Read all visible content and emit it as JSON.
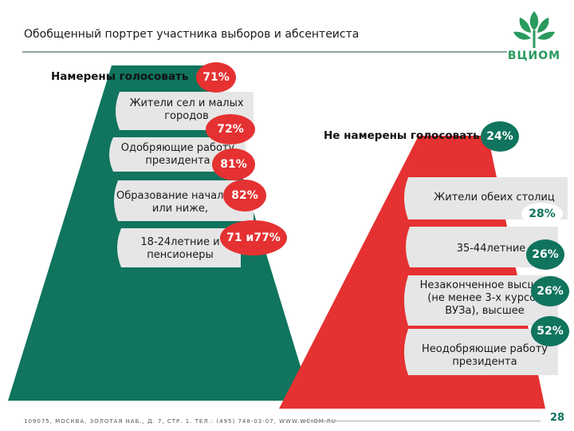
{
  "title": "Обобщенный портрет участника выборов и абсентеиста",
  "brand": "ВЦИОМ",
  "colors": {
    "green": "#10745e",
    "red": "#e53131",
    "block": "#e6e6e6"
  },
  "left": {
    "header": "Намерены голосовать",
    "header_value": "71%",
    "blocks": [
      {
        "line1": "Жители сел и малых",
        "line2": "городов",
        "value": "72%"
      },
      {
        "line1": "Одобряющие работу",
        "line2": "президента",
        "value": "81%"
      },
      {
        "line1": "Образование начальное",
        "line2": "или ниже,",
        "value": "82%"
      },
      {
        "line1": "18-24летние и",
        "line2": "пенсионеры",
        "value": "71 и77%"
      }
    ]
  },
  "right": {
    "header": "Не намерены голосовать",
    "header_value": "24%",
    "blocks": [
      {
        "line1": "Жители обеих столиц",
        "value": "28%"
      },
      {
        "line1": "35-44летние",
        "value": "26%"
      },
      {
        "line1": "Незаконченное высшее",
        "line2": "(не менее 3-х курсов",
        "line3": "ВУЗа), высшее",
        "value": "26%"
      },
      {
        "line1": "Неодобряющие работу",
        "line2": "президента",
        "value": "52%"
      }
    ]
  },
  "footer": "109075, МОСКВА, ЗОЛОТАЯ НАБ., Д. 7, СТР. 1. ТЕЛ.: (495) 748-03-07, WWW.WCIOM.RU",
  "page_number": "28"
}
